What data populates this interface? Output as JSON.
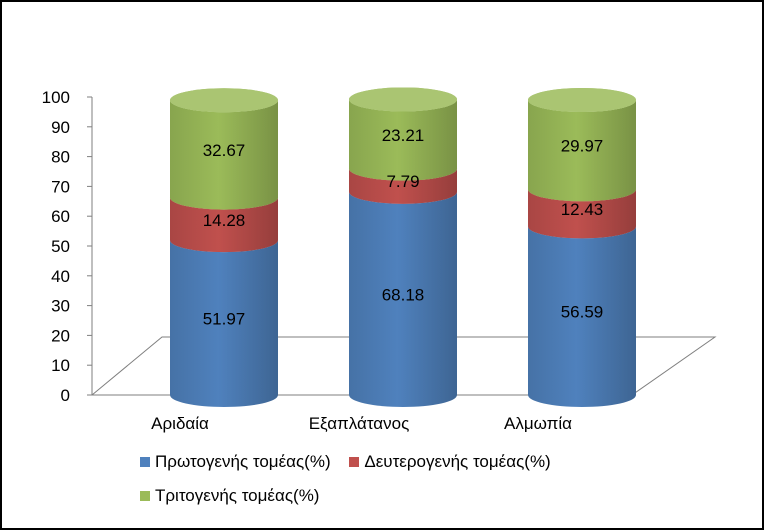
{
  "chart_data": {
    "type": "bar",
    "stacked": true,
    "style": "3d-cylinder",
    "title": "",
    "xlabel": "",
    "ylabel": "",
    "ylim": [
      0,
      100
    ],
    "yticks": [
      "0",
      "10",
      "20",
      "30",
      "40",
      "50",
      "60",
      "70",
      "80",
      "90",
      "100"
    ],
    "categories": [
      "Αριδαία",
      "Εξαπλάτανος",
      "Αλμωπία"
    ],
    "series": [
      {
        "name": "Πρωτογενής τομέας(%)",
        "color": "#4F81BD",
        "values": [
          51.97,
          68.18,
          56.59
        ],
        "labels": [
          "51.97",
          "68.18",
          "56.59"
        ]
      },
      {
        "name": "Δευτερογενής τομέας(%)",
        "color": "#C0504D",
        "values": [
          14.28,
          7.79,
          12.43
        ],
        "labels": [
          "14.28",
          "7.79",
          "12.43"
        ]
      },
      {
        "name": "Τριτογενής τομέας(%)",
        "color": "#9BBB59",
        "values": [
          32.67,
          23.21,
          29.97
        ],
        "labels": [
          "32.67",
          "23.21",
          "29.97"
        ]
      }
    ],
    "legend_position": "bottom"
  }
}
